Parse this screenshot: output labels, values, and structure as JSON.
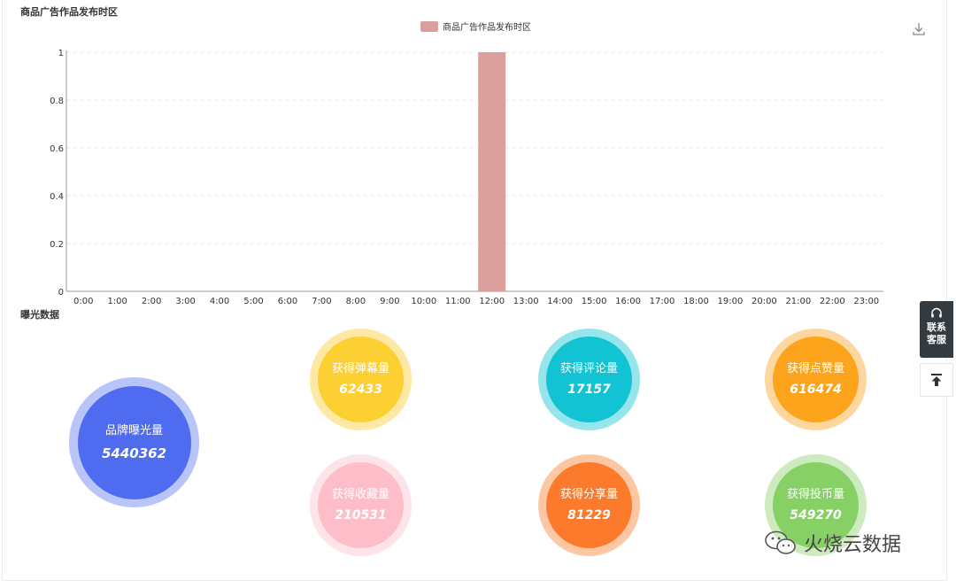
{
  "chart_section": {
    "title": "商品广告作品发布时区",
    "download_icon": "download-icon"
  },
  "chart_data": {
    "type": "bar",
    "title": "商品广告作品发布时区",
    "series": [
      {
        "name": "商品广告作品发布时区",
        "color": "#dba09e",
        "values": [
          0,
          0,
          0,
          0,
          0,
          0,
          0,
          0,
          0,
          0,
          0,
          0,
          1,
          0,
          0,
          0,
          0,
          0,
          0,
          0,
          0,
          0,
          0,
          0
        ]
      }
    ],
    "categories": [
      "0:00",
      "1:00",
      "2:00",
      "3:00",
      "4:00",
      "5:00",
      "6:00",
      "7:00",
      "8:00",
      "9:00",
      "10:00",
      "11:00",
      "12:00",
      "13:00",
      "14:00",
      "15:00",
      "16:00",
      "17:00",
      "18:00",
      "19:00",
      "20:00",
      "21:00",
      "22:00",
      "23:00"
    ],
    "ylim": [
      0,
      1
    ],
    "yticks": [
      "0",
      "0.2",
      "0.4",
      "0.6",
      "0.8",
      "1"
    ],
    "grid": true,
    "legend": "top-center"
  },
  "exposure_section": {
    "title": "曝光数据"
  },
  "stats": {
    "brand_exposure": {
      "label": "品牌曝光量",
      "value": "5440362",
      "color": "#4f6cf0",
      "ring": "#b9c5f8"
    },
    "danmaku": {
      "label": "获得弹幕量",
      "value": "62433",
      "color": "#fccf33",
      "ring": "#fde9a3"
    },
    "comments": {
      "label": "获得评论量",
      "value": "17157",
      "color": "#12c3d3",
      "ring": "#97e5ec"
    },
    "likes": {
      "label": "获得点赞量",
      "value": "616474",
      "color": "#fca51c",
      "ring": "#fdd79d"
    },
    "favorites": {
      "label": "获得收藏量",
      "value": "210531",
      "color": "#fdbdc9",
      "ring": "#fde4e8"
    },
    "shares": {
      "label": "获得分享量",
      "value": "81229",
      "color": "#fc7a2b",
      "ring": "#fcc7a2"
    },
    "coins": {
      "label": "获得投币量",
      "value": "549270",
      "color": "#86d066",
      "ring": "#cdebbf"
    }
  },
  "sidebar": {
    "service_label": "联系客服",
    "service_icon": "headset-icon",
    "top_icon": "back-to-top-icon"
  },
  "watermark": {
    "text": "火烧云数据",
    "icon": "wechat-icon"
  }
}
